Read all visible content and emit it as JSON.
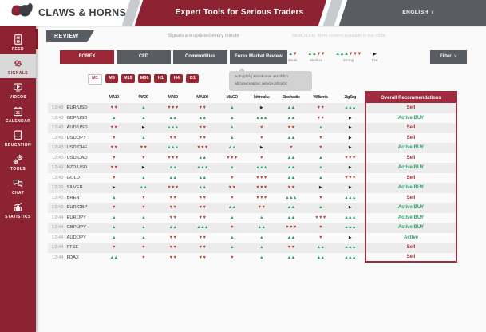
{
  "header": {
    "brand": "CLAWS & HORNS",
    "title": "Expert Tools for Serious Traders",
    "language": "ENGLISH"
  },
  "sidebar": {
    "items": [
      {
        "label": "FEED",
        "icon": "feed-icon",
        "active": false
      },
      {
        "label": "SIGNALS",
        "icon": "signals-icon",
        "active": true
      },
      {
        "label": "VIDEOS",
        "icon": "videos-icon",
        "active": false
      },
      {
        "label": "CALENDAR",
        "icon": "calendar-icon",
        "active": false
      },
      {
        "label": "EDUCATION",
        "icon": "education-icon",
        "active": false
      },
      {
        "label": "TOOLS",
        "icon": "tools-icon",
        "active": false
      },
      {
        "label": "CHAT",
        "icon": "chat-icon",
        "active": false
      },
      {
        "label": "STATISTICS",
        "icon": "statistics-icon",
        "active": false
      }
    ]
  },
  "review_bar": {
    "tab_label": "REVIEW",
    "update_note": "Signals are updated every minute",
    "demo_note": "DEMO Only. More content available in live mode"
  },
  "instrument_tabs": [
    {
      "label": "FOREX",
      "active": true
    },
    {
      "label": "CFD",
      "active": false
    },
    {
      "label": "Commodities",
      "active": false
    },
    {
      "label": "Forex Market Review",
      "active": false
    }
  ],
  "legend": [
    {
      "label": "Weak",
      "up": 1,
      "down": 1
    },
    {
      "label": "Medium",
      "up": 2,
      "down": 2
    },
    {
      "label": "Strong",
      "up": 3,
      "down": 3
    },
    {
      "label": "Flat",
      "flat": true
    }
  ],
  "filter": {
    "label": "Filter"
  },
  "timeframes": [
    {
      "label": "M1",
      "active": true
    },
    {
      "label": "M5",
      "active": false
    },
    {
      "label": "M15",
      "active": false
    },
    {
      "label": "M30",
      "active": false
    },
    {
      "label": "H1",
      "active": false
    },
    {
      "label": "H4",
      "active": false
    },
    {
      "label": "D1",
      "active": false
    }
  ],
  "tooltip": {
    "line1": "Adnvjdbfvj kdonkonvs ascbfdch",
    "line2": "abcuavcvagcvc asncja jsbcjsbc"
  },
  "table": {
    "columns": [
      "MA10",
      "MA20",
      "MA50",
      "MA100",
      "MACD",
      "Ichimoku",
      "Stochastic",
      "William's",
      "ZigZag"
    ],
    "recommendation_header": "Overall Recommendations",
    "rows": [
      {
        "time": "12:43",
        "pair": "EUR/USD",
        "signals": [
          "d2",
          "u1",
          "d3",
          "d2",
          "u1",
          "f",
          "u2",
          "d2",
          "u3"
        ],
        "recommendation": "Sell"
      },
      {
        "time": "12:43",
        "pair": "GBP/USD",
        "signals": [
          "u1",
          "u1",
          "u2",
          "u2",
          "u1",
          "u3",
          "u2",
          "d2",
          "f"
        ],
        "recommendation": "Active BUY"
      },
      {
        "time": "12:43",
        "pair": "AUD/USD",
        "signals": [
          "d2",
          "f",
          "u3",
          "d2",
          "u1",
          "d1",
          "d2",
          "u1",
          "f"
        ],
        "recommendation": "Sell"
      },
      {
        "time": "12:43",
        "pair": "USD/JPY",
        "signals": [
          "d1",
          "u1",
          "d2",
          "d2",
          "u1",
          "d1",
          "u2",
          "d1",
          "f"
        ],
        "recommendation": "Sell"
      },
      {
        "time": "12:43",
        "pair": "USD/CHF",
        "signals": [
          "d2",
          "d2",
          "u3",
          "d3",
          "u2",
          "f",
          "d1",
          "d1",
          "f"
        ],
        "recommendation": "Active BUY"
      },
      {
        "time": "12:43",
        "pair": "USD/CAD",
        "signals": [
          "d1",
          "d1",
          "d3",
          "u2",
          "d3",
          "d1",
          "u2",
          "u1",
          "d3"
        ],
        "recommendation": "Sell"
      },
      {
        "time": "12:43",
        "pair": "NZD/USD",
        "signals": [
          "d2",
          "f",
          "u2",
          "u3",
          "u1",
          "u3",
          "u2",
          "u1",
          "f"
        ],
        "recommendation": "Active BUY"
      },
      {
        "time": "12:43",
        "pair": "GOLD",
        "signals": [
          "d1",
          "u1",
          "u2",
          "u2",
          "d1",
          "d3",
          "u2",
          "u1",
          "d3"
        ],
        "recommendation": "Sell"
      },
      {
        "time": "12:29",
        "pair": "SILVER",
        "signals": [
          "f",
          "u2",
          "d3",
          "u2",
          "d2",
          "d3",
          "d2",
          "f",
          "f"
        ],
        "recommendation": "Active BUY"
      },
      {
        "time": "12:43",
        "pair": "BRENT",
        "signals": [
          "u1",
          "d1",
          "d2",
          "d2",
          "d1",
          "d3",
          "u3",
          "d1",
          "u3"
        ],
        "recommendation": "Sell"
      },
      {
        "time": "12:43",
        "pair": "EUR/GBP",
        "signals": [
          "d1",
          "d1",
          "d2",
          "d2",
          "u2",
          "d2",
          "u2",
          "u1",
          "f"
        ],
        "recommendation": "Active BUY"
      },
      {
        "time": "12:44",
        "pair": "EUR/JPY",
        "signals": [
          "u1",
          "u1",
          "d2",
          "d2",
          "u1",
          "u1",
          "u2",
          "d3",
          "u3"
        ],
        "recommendation": "Active BUY"
      },
      {
        "time": "12:44",
        "pair": "GBP/JPY",
        "signals": [
          "u1",
          "u1",
          "u2",
          "u3",
          "d1",
          "u2",
          "d3",
          "d1",
          "u3"
        ],
        "recommendation": "Active BUY"
      },
      {
        "time": "12:44",
        "pair": "AUD/JPY",
        "signals": [
          "u1",
          "u1",
          "d2",
          "d2",
          "u1",
          "u1",
          "u2",
          "d1",
          "f"
        ],
        "recommendation": "Active"
      },
      {
        "time": "12:44",
        "pair": "FTSE",
        "signals": [
          "d1",
          "d1",
          "d2",
          "d2",
          "u1",
          "u1",
          "d2",
          "u2",
          "u3"
        ],
        "recommendation": "Sell"
      },
      {
        "time": "12:44",
        "pair": "FDAX",
        "signals": [
          "u2",
          "d1",
          "d2",
          "d2",
          "d1",
          "u1",
          "u2",
          "u2",
          "u3"
        ],
        "recommendation": "Sell"
      }
    ]
  },
  "colors": {
    "accent_red": "#8d2332",
    "button_red": "#9c2734",
    "rec_border_red": "#9e2c3e",
    "dark_gray": "#595d63",
    "up_green": "#2ca06b",
    "down_red": "#bf4737",
    "sell_text": "#a2333c",
    "buy_text": "#2ca06b"
  }
}
